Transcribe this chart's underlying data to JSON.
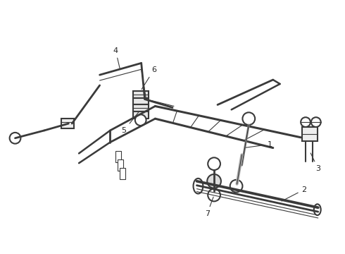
{
  "background_color": "#ffffff",
  "line_color": "#3a3a3a",
  "lw_main": 1.5,
  "lw_thin": 0.8,
  "lw_thick": 2.2,
  "label_fontsize": 8,
  "label_color": "#222222"
}
